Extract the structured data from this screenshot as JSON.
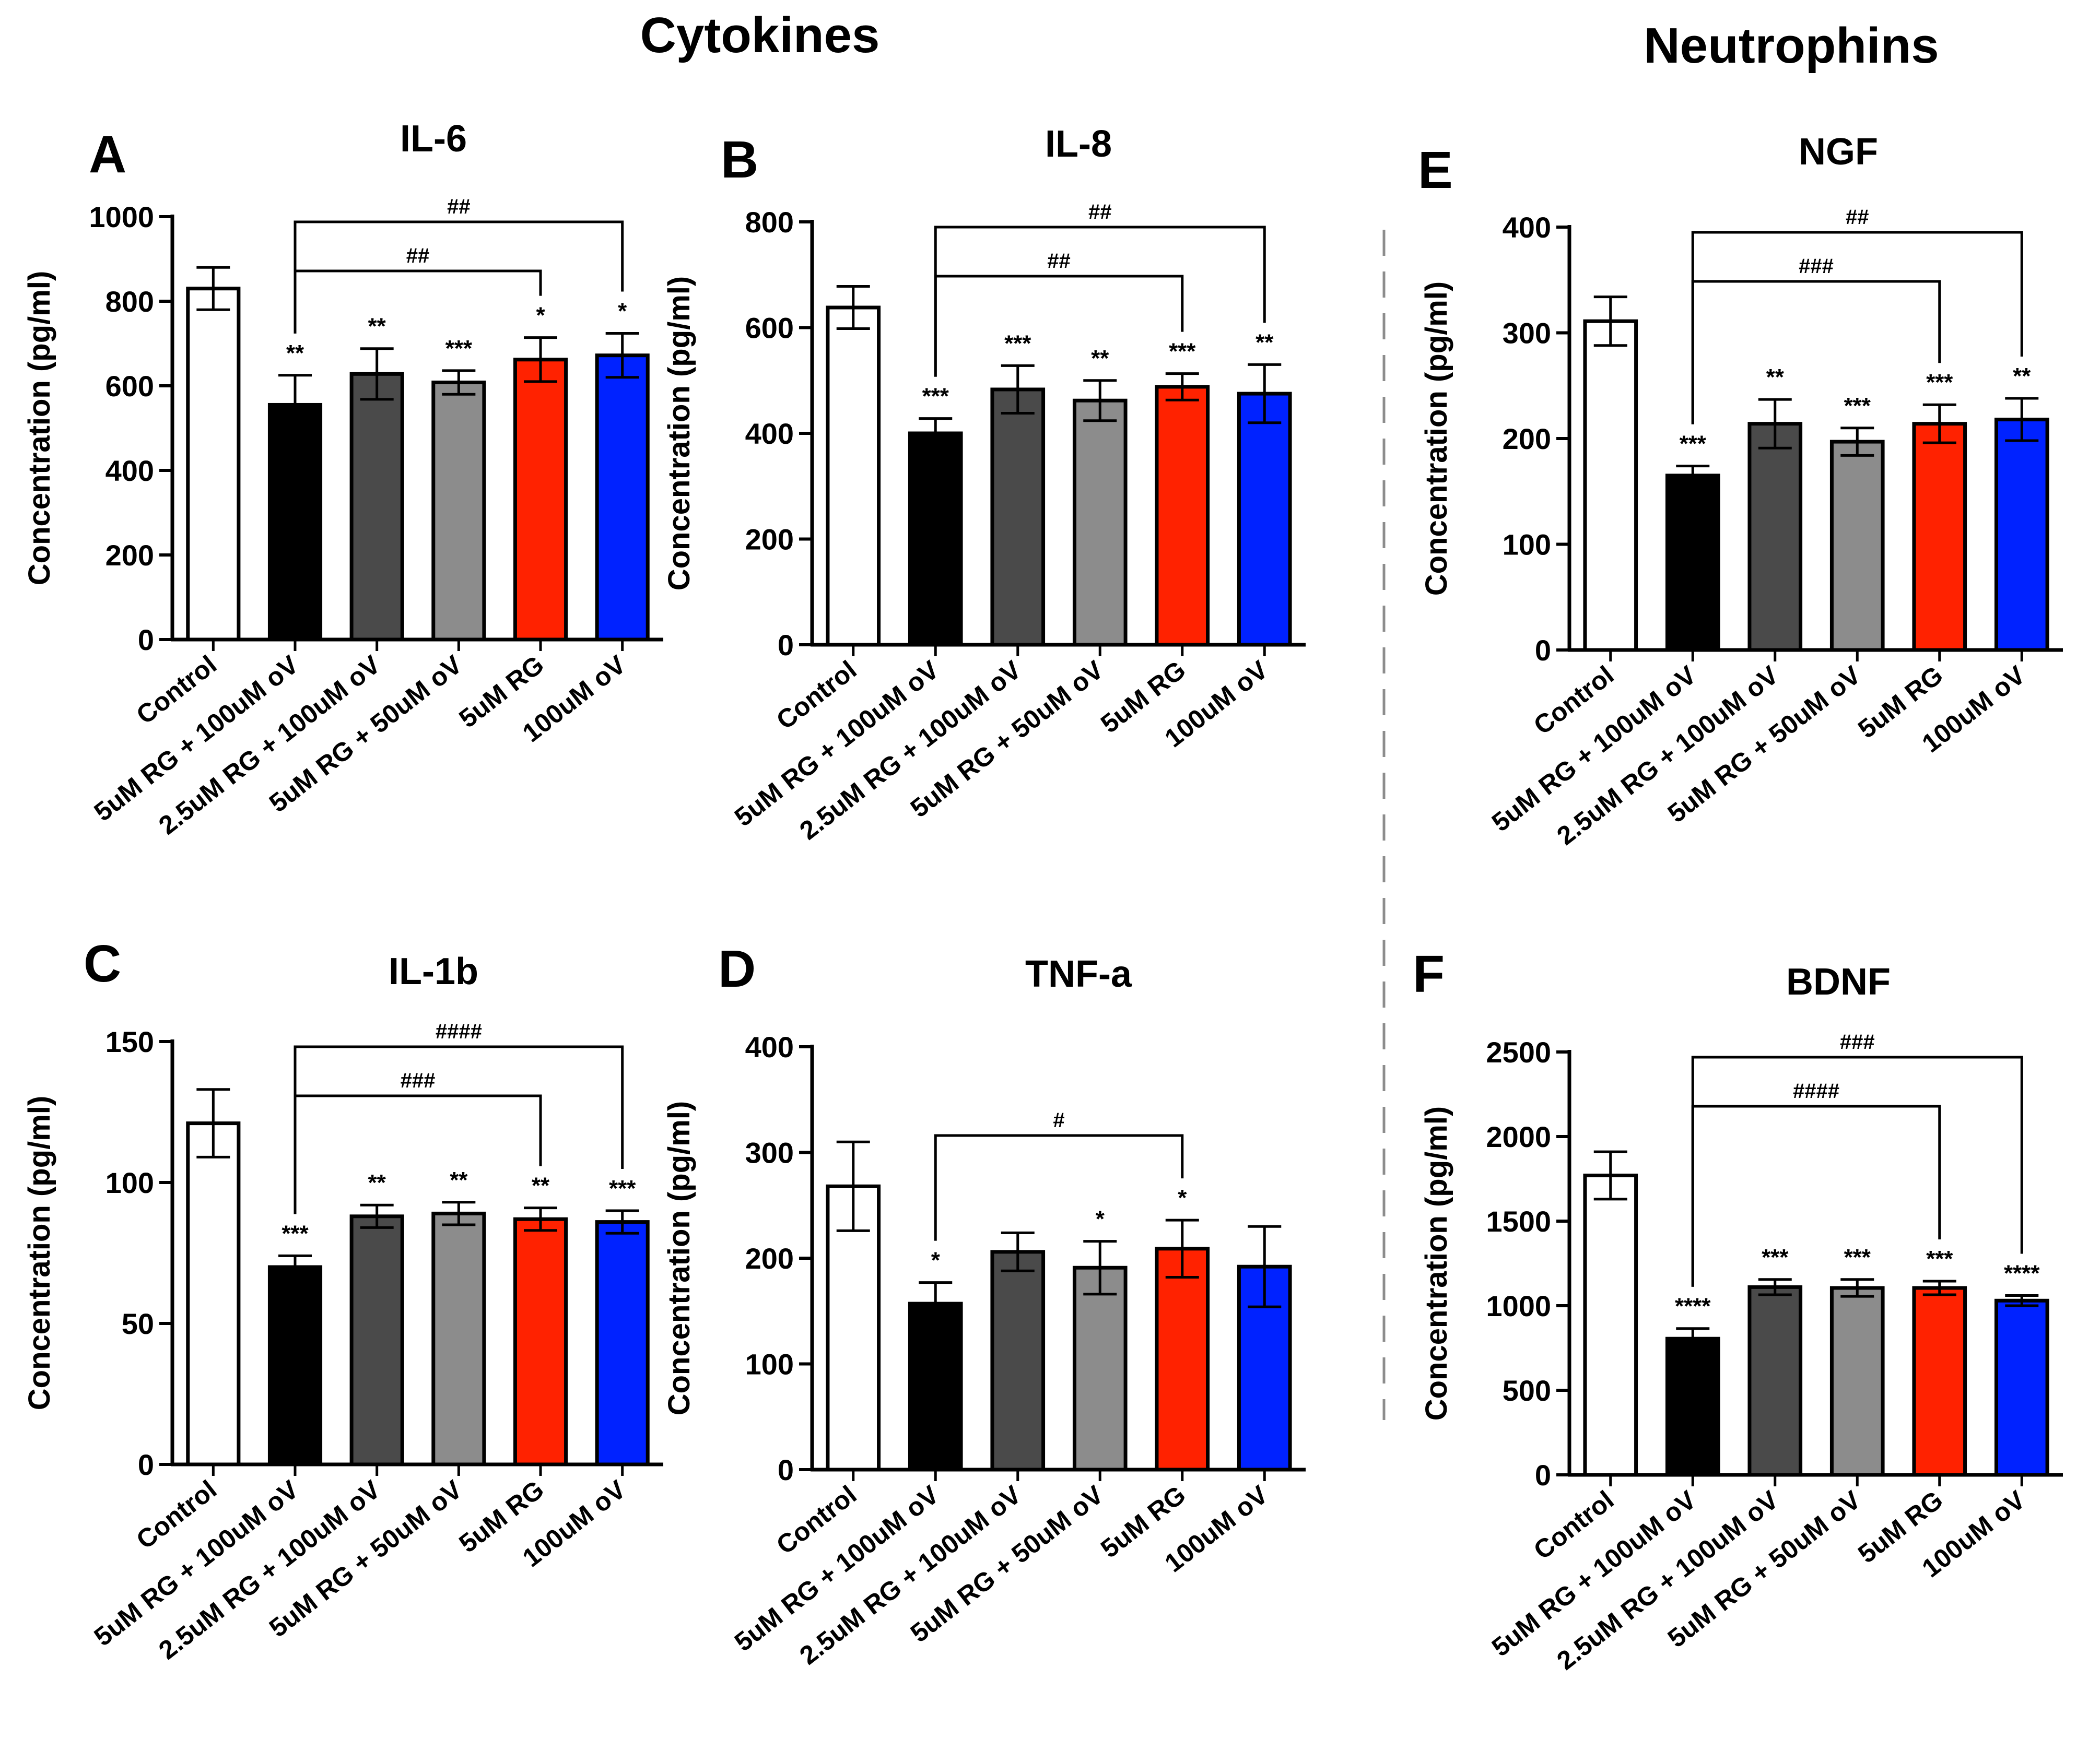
{
  "figure": {
    "section_titles": {
      "left": "Cytokines",
      "right": "Neutrophins"
    }
  },
  "categories": [
    "Control",
    "5uM RG + 100uM oV",
    "2.5uM RG + 100uM oV",
    "5uM RG + 50uM oV",
    "5uM RG",
    "100uM oV"
  ],
  "colors": {
    "bar_fills": [
      "#ffffff",
      "#000000",
      "#4a4a4a",
      "#8c8c8c",
      "#ff2200",
      "#0022ff"
    ],
    "axis": "#000000",
    "divider": "#8c8c8c"
  },
  "chart_data": [
    {
      "id": "A",
      "letter": "A",
      "type": "bar",
      "title": "IL-6",
      "ylabel": "Concentration (pg/ml)",
      "ylim": [
        0,
        1000
      ],
      "yticks": [
        0,
        200,
        400,
        600,
        800,
        1000
      ],
      "values": [
        830,
        555,
        628,
        608,
        662,
        672
      ],
      "errors": [
        50,
        70,
        60,
        28,
        52,
        52
      ],
      "sig": [
        "",
        "**",
        "**",
        "***",
        "*",
        "*"
      ],
      "brackets": [
        {
          "from": 1,
          "to": 4,
          "label": "##"
        },
        {
          "from": 1,
          "to": 5,
          "label": "##"
        }
      ]
    },
    {
      "id": "B",
      "letter": "B",
      "type": "bar",
      "title": "IL-8",
      "ylabel": "Concentration (pg/ml)",
      "ylim": [
        0,
        800
      ],
      "yticks": [
        0,
        200,
        400,
        600,
        800
      ],
      "values": [
        638,
        400,
        483,
        462,
        488,
        475
      ],
      "errors": [
        40,
        28,
        45,
        38,
        25,
        55
      ],
      "sig": [
        "",
        "***",
        "***",
        "**",
        "***",
        "**"
      ],
      "brackets": [
        {
          "from": 1,
          "to": 4,
          "label": "##"
        },
        {
          "from": 1,
          "to": 5,
          "label": "##"
        }
      ]
    },
    {
      "id": "C",
      "letter": "C",
      "type": "bar",
      "title": "IL-1b",
      "ylabel": "Concentration (pg/ml)",
      "ylim": [
        0,
        150
      ],
      "yticks": [
        0,
        50,
        100,
        150
      ],
      "values": [
        121,
        70,
        88,
        89,
        87,
        86
      ],
      "errors": [
        12,
        4,
        4,
        4,
        4,
        4
      ],
      "sig": [
        "",
        "***",
        "**",
        "**",
        "**",
        "***"
      ],
      "brackets": [
        {
          "from": 1,
          "to": 4,
          "label": "###"
        },
        {
          "from": 1,
          "to": 5,
          "label": "####"
        }
      ]
    },
    {
      "id": "D",
      "letter": "D",
      "type": "bar",
      "title": "TNF-a",
      "ylabel": "Concentration (pg/ml)",
      "ylim": [
        0,
        400
      ],
      "yticks": [
        0,
        100,
        200,
        300,
        400
      ],
      "values": [
        268,
        157,
        206,
        191,
        209,
        192
      ],
      "errors": [
        42,
        20,
        18,
        25,
        27,
        38
      ],
      "sig": [
        "",
        "*",
        "",
        "*",
        "*",
        ""
      ],
      "brackets": [
        {
          "from": 1,
          "to": 4,
          "label": "#"
        }
      ]
    },
    {
      "id": "E",
      "letter": "E",
      "type": "bar",
      "title": "NGF",
      "ylabel": "Concentration (pg/ml)",
      "ylim": [
        0,
        400
      ],
      "yticks": [
        0,
        100,
        200,
        300,
        400
      ],
      "values": [
        311,
        165,
        214,
        197,
        214,
        218
      ],
      "errors": [
        23,
        9,
        23,
        13,
        18,
        20
      ],
      "sig": [
        "",
        "***",
        "**",
        "***",
        "***",
        "**"
      ],
      "brackets": [
        {
          "from": 1,
          "to": 4,
          "label": "###"
        },
        {
          "from": 1,
          "to": 5,
          "label": "##"
        }
      ]
    },
    {
      "id": "F",
      "letter": "F",
      "type": "bar",
      "title": "BDNF",
      "ylabel": "Concentration (pg/ml)",
      "ylim": [
        0,
        2500
      ],
      "yticks": [
        0,
        500,
        1000,
        1500,
        2000,
        2500
      ],
      "values": [
        1770,
        805,
        1110,
        1105,
        1105,
        1030
      ],
      "errors": [
        140,
        60,
        45,
        50,
        40,
        30
      ],
      "sig": [
        "",
        "****",
        "***",
        "***",
        "***",
        "****"
      ],
      "brackets": [
        {
          "from": 1,
          "to": 4,
          "label": "####"
        },
        {
          "from": 1,
          "to": 5,
          "label": "###"
        }
      ]
    }
  ]
}
